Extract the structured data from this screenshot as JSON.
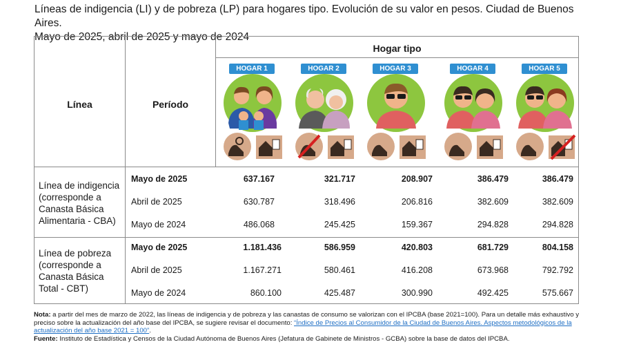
{
  "title_line1": "Líneas de indigencia (LI) y de pobreza (LP) para hogares tipo. Evolución de su valor en pesos. Ciudad de Buenos Aires.",
  "title_line2": "Mayo de 2025, abril de 2025 y mayo de 2024",
  "headers": {
    "linea": "Línea",
    "periodo": "Período",
    "hogar_tipo": "Hogar tipo"
  },
  "hogares": [
    "HOGAR 1",
    "HOGAR 2",
    "HOGAR 3",
    "HOGAR 4",
    "HOGAR 5"
  ],
  "colors": {
    "badge": "#2f8fd1",
    "circle": "#8dc63f",
    "icon_bg": "#d6a98a",
    "icon_fg": "#3a2a20",
    "cross": "#d62020",
    "border": "#8a8a8a",
    "link": "#1f6fc4"
  },
  "sections": [
    {
      "label": [
        "Línea de indigencia",
        "(corresponde a",
        "Canasta Básica",
        "Alimentaria - CBA)"
      ],
      "rows": [
        {
          "period": "Mayo de 2025",
          "values": [
            "637.167",
            "321.717",
            "208.907",
            "386.479",
            "386.479"
          ],
          "bold": true
        },
        {
          "period": "Abril de 2025",
          "values": [
            "630.787",
            "318.496",
            "206.816",
            "382.609",
            "382.609"
          ],
          "bold": false
        },
        {
          "period": "Mayo de 2024",
          "values": [
            "486.068",
            "245.425",
            "159.367",
            "294.828",
            "294.828"
          ],
          "bold": false
        }
      ]
    },
    {
      "label": [
        "Línea de pobreza",
        "(corresponde a",
        "Canasta Básica",
        "Total - CBT)"
      ],
      "rows": [
        {
          "period": "Mayo de 2025",
          "values": [
            "1.181.436",
            "586.959",
            "420.803",
            "681.729",
            "804.158"
          ],
          "bold": true
        },
        {
          "period": "Abril de 2025",
          "values": [
            "1.167.271",
            "580.461",
            "416.208",
            "673.968",
            "792.792"
          ],
          "bold": false
        },
        {
          "period": "Mayo de 2024",
          "values": [
            "860.100",
            "425.487",
            "300.990",
            "492.425",
            "575.667"
          ],
          "bold": false
        }
      ]
    }
  ],
  "note": {
    "label": "Nota:",
    "text": " a partir del mes de marzo de 2022, las líneas de indigencia y de pobreza y las canastas de consumo se valorizan con el IPCBA (base 2021=100). Para un detalle más exhaustivo y preciso sobre la actualización del año base del IPCBA, se sugiere revisar el documento: ",
    "link": "“Índice de Precios al Consumidor de la Ciudad de Buenos Aires. Aspectos metodológicos de la actualización del año base 2021 = 100”",
    "end": "."
  },
  "source": {
    "label": "Fuente:",
    "text": " Instituto de Estadística y Censos de la Ciudad Autónoma de Buenos Aires (Jefatura de Gabinete de Ministros - GCBA) sobre la base de datos del IPCBA."
  }
}
